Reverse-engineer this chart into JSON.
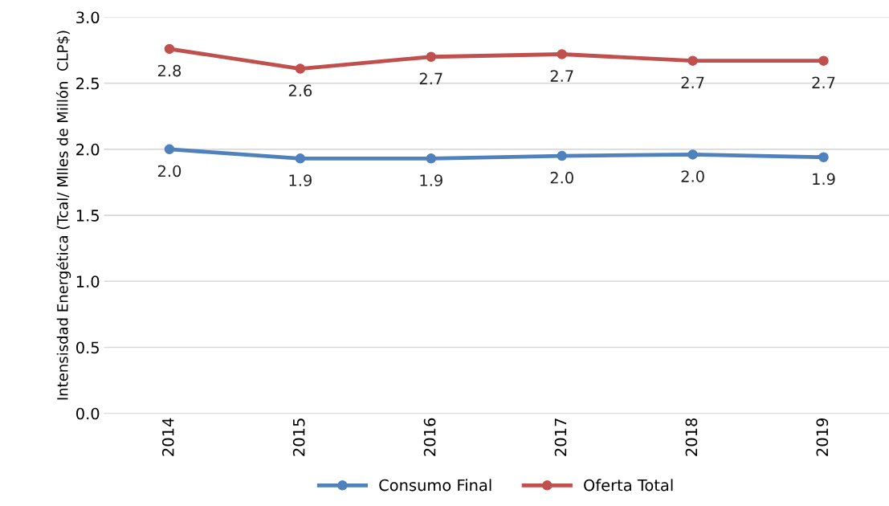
{
  "chart_data": {
    "type": "line",
    "ylabel": "Intensisdad Energética (Tcal/ Mlles de Millón  CLP$)",
    "categories": [
      "2014",
      "2015",
      "2016",
      "2017",
      "2018",
      "2019"
    ],
    "series": [
      {
        "name": "Consumo Final",
        "color": "#4f81bd",
        "values": [
          2.0,
          1.93,
          1.93,
          1.95,
          1.96,
          1.94
        ],
        "value_labels": [
          "2.0",
          "1.9",
          "1.9",
          "2.0",
          "2.0",
          "1.9"
        ]
      },
      {
        "name": "Oferta Total",
        "color": "#c0504d",
        "values": [
          2.76,
          2.61,
          2.7,
          2.72,
          2.67,
          2.67
        ],
        "value_labels": [
          "2.8",
          "2.6",
          "2.7",
          "2.7",
          "2.7",
          "2.7"
        ]
      }
    ],
    "ylim": [
      0,
      3
    ],
    "yticks": [
      {
        "value": 0,
        "label": "0.0"
      },
      {
        "value": 0.5,
        "label": "0.5"
      },
      {
        "value": 1,
        "label": "1.0"
      },
      {
        "value": 1.5,
        "label": "1.5"
      },
      {
        "value": 2,
        "label": "2.0"
      },
      {
        "value": 2.5,
        "label": "2.5"
      },
      {
        "value": 3,
        "label": "3.0"
      }
    ],
    "grid": "y",
    "legend": "bottom",
    "marker": "circle",
    "line_style": "solid"
  }
}
